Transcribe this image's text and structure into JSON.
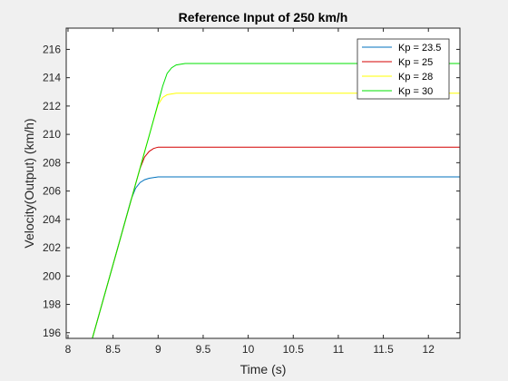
{
  "chart_data": {
    "type": "line",
    "title": "Reference Input of 250 km/h",
    "xlabel": "Time (s)",
    "ylabel": "Velocity(Output) (km/h)",
    "xlim": [
      7.98,
      12.35
    ],
    "ylim": [
      195.6,
      217.5
    ],
    "xticks": [
      8,
      8.5,
      9,
      9.5,
      10,
      10.5,
      11,
      11.5,
      12
    ],
    "xtick_labels": [
      "8",
      "8.5",
      "9",
      "9.5",
      "10",
      "10.5",
      "11",
      "11.5",
      "12"
    ],
    "yticks": [
      196,
      198,
      200,
      202,
      204,
      206,
      208,
      210,
      212,
      214,
      216
    ],
    "ytick_labels": [
      "196",
      "198",
      "200",
      "202",
      "204",
      "206",
      "208",
      "210",
      "212",
      "214",
      "216"
    ],
    "grid": false,
    "legend_position": "top-right",
    "series": [
      {
        "name": "Kp = 23.5",
        "color": "#0072bd",
        "x": [
          8.27,
          8.5,
          8.7,
          8.75,
          8.8,
          8.85,
          8.9,
          9.0,
          9.1,
          9.3,
          12.35
        ],
        "y": [
          195.6,
          200.8,
          205.4,
          206.2,
          206.6,
          206.8,
          206.9,
          207.0,
          207.0,
          207.0,
          207.0
        ]
      },
      {
        "name": "Kp = 25",
        "color": "#d40000",
        "x": [
          8.27,
          8.5,
          8.75,
          8.8,
          8.85,
          8.9,
          8.95,
          9.0,
          9.1,
          9.3,
          12.35
        ],
        "y": [
          195.6,
          200.8,
          206.5,
          207.6,
          208.4,
          208.8,
          209.0,
          209.1,
          209.1,
          209.1,
          209.1
        ]
      },
      {
        "name": "Kp = 28",
        "color": "#ffff00",
        "x": [
          8.27,
          8.5,
          8.75,
          8.85,
          8.95,
          9.0,
          9.05,
          9.1,
          9.2,
          9.4,
          12.35
        ],
        "y": [
          195.6,
          200.8,
          206.5,
          208.8,
          211.0,
          212.1,
          212.6,
          212.8,
          212.9,
          212.9,
          212.9
        ]
      },
      {
        "name": "Kp = 30",
        "color": "#00e000",
        "x": [
          8.27,
          8.5,
          8.75,
          8.9,
          9.0,
          9.05,
          9.1,
          9.15,
          9.2,
          9.3,
          9.45,
          12.35
        ],
        "y": [
          195.6,
          200.8,
          206.5,
          209.9,
          212.2,
          213.4,
          214.3,
          214.7,
          214.9,
          215.0,
          215.0,
          215.0
        ]
      }
    ]
  }
}
